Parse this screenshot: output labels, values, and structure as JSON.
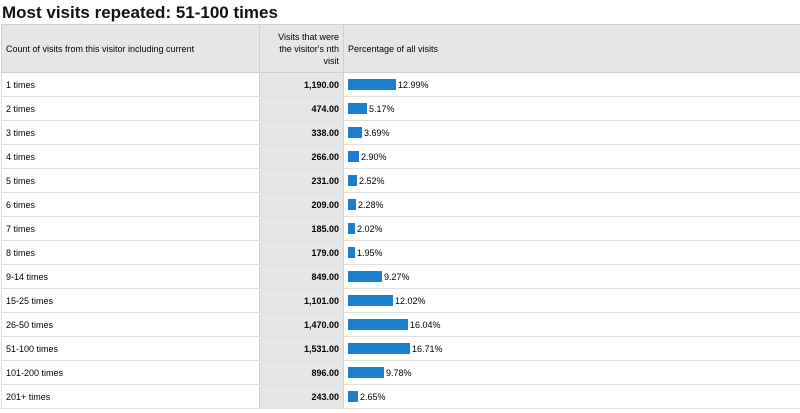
{
  "title": "Most visits repeated: 51-100 times",
  "headers": {
    "count": "Count of visits from this visitor including current",
    "visits": "Visits that were the visitor's nth visit",
    "percentage": "Percentage of all visits"
  },
  "bar_color": "#1a7fd0",
  "rows": [
    {
      "label": "1 times",
      "visits": "1,190.00",
      "percent": "12.99%",
      "percent_value": 12.99
    },
    {
      "label": "2 times",
      "visits": "474.00",
      "percent": "5.17%",
      "percent_value": 5.17
    },
    {
      "label": "3 times",
      "visits": "338.00",
      "percent": "3.69%",
      "percent_value": 3.69
    },
    {
      "label": "4 times",
      "visits": "266.00",
      "percent": "2.90%",
      "percent_value": 2.9
    },
    {
      "label": "5 times",
      "visits": "231.00",
      "percent": "2.52%",
      "percent_value": 2.52
    },
    {
      "label": "6 times",
      "visits": "209.00",
      "percent": "2.28%",
      "percent_value": 2.28
    },
    {
      "label": "7 times",
      "visits": "185.00",
      "percent": "2.02%",
      "percent_value": 2.02
    },
    {
      "label": "8 times",
      "visits": "179.00",
      "percent": "1.95%",
      "percent_value": 1.95
    },
    {
      "label": "9-14 times",
      "visits": "849.00",
      "percent": "9.27%",
      "percent_value": 9.27
    },
    {
      "label": "15-25 times",
      "visits": "1,101.00",
      "percent": "12.02%",
      "percent_value": 12.02
    },
    {
      "label": "26-50 times",
      "visits": "1,470.00",
      "percent": "16.04%",
      "percent_value": 16.04
    },
    {
      "label": "51-100 times",
      "visits": "1,531.00",
      "percent": "16.71%",
      "percent_value": 16.71
    },
    {
      "label": "101-200 times",
      "visits": "896.00",
      "percent": "9.78%",
      "percent_value": 9.78
    },
    {
      "label": "201+ times",
      "visits": "243.00",
      "percent": "2.65%",
      "percent_value": 2.65
    }
  ]
}
